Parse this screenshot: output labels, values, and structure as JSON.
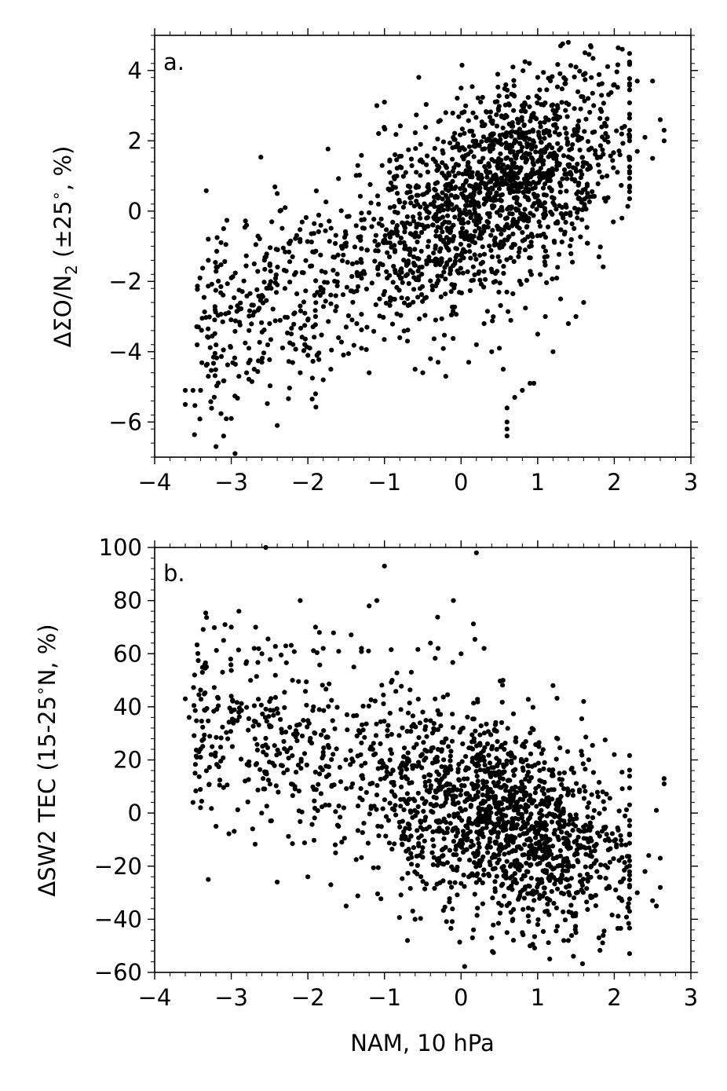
{
  "chart_data": [
    {
      "type": "scatter",
      "panel_label": "a.",
      "ylabel_prefix": "ΔΣO/N",
      "ylabel_sub": "2",
      "ylabel_suffix": " (±25",
      "ylabel_deg": "∘",
      "ylabel_end": ", %)",
      "xlim": [
        -4,
        3
      ],
      "ylim": [
        -7,
        5
      ],
      "xticks": [
        -4,
        -3,
        -2,
        -1,
        0,
        1,
        2,
        3
      ],
      "yticks": [
        -6,
        -4,
        -2,
        0,
        2,
        4
      ],
      "xtick_labels": [
        "−4",
        "−3",
        "−2",
        "−1",
        "0",
        "1",
        "2",
        "3"
      ],
      "ytick_labels": [
        "−6",
        "−4",
        "−2",
        "0",
        "2",
        "4"
      ],
      "marker_color": "#000000",
      "trend": {
        "slope": 1.05,
        "intercept": 0.1,
        "scatter_sd": 1.35
      },
      "points": [
        [
          -3.6,
          -5.5
        ],
        [
          -3.5,
          -5.1
        ],
        [
          -3.3,
          -4.7
        ],
        [
          -3.2,
          -6.7
        ],
        [
          -3.1,
          -6.4
        ],
        [
          -3.0,
          -5.9
        ],
        [
          -2.95,
          -6.9
        ],
        [
          -2.9,
          -4.7
        ],
        [
          -2.8,
          -4.6
        ],
        [
          -2.7,
          -4.5
        ],
        [
          -2.6,
          -4.3
        ],
        [
          -2.5,
          -3.2
        ],
        [
          -2.4,
          -6.1
        ],
        [
          -3.3,
          -1.4
        ],
        [
          -3.3,
          -0.8
        ],
        [
          -3.1,
          -0.5
        ],
        [
          -3.0,
          -1.9
        ],
        [
          -2.9,
          -2.8
        ],
        [
          -2.8,
          -0.4
        ],
        [
          -2.7,
          -1.5
        ],
        [
          -2.6,
          -2.4
        ],
        [
          -2.5,
          -2.1
        ],
        [
          -2.4,
          0.5
        ],
        [
          -2.3,
          -2.2
        ],
        [
          -2.2,
          -1.3
        ],
        [
          -2.1,
          -2.7
        ],
        [
          -2.0,
          -3.1
        ],
        [
          -1.9,
          -3.0
        ],
        [
          -1.8,
          -4.8
        ],
        [
          -1.7,
          -4.5
        ],
        [
          -1.6,
          -3.6
        ],
        [
          -1.5,
          -3.3
        ],
        [
          -1.4,
          -2.3
        ],
        [
          -1.3,
          -3.9
        ],
        [
          -1.2,
          -4.6
        ],
        [
          -1.1,
          3.0
        ],
        [
          -1.0,
          3.1
        ],
        [
          -0.9,
          -2.5
        ],
        [
          -0.8,
          -3.6
        ],
        [
          -0.7,
          -3.7
        ],
        [
          -0.6,
          -4.5
        ],
        [
          -0.5,
          -4.6
        ],
        [
          -0.4,
          -4.2
        ],
        [
          -0.3,
          -4.3
        ],
        [
          -0.2,
          2.8
        ],
        [
          -0.1,
          -0.4
        ],
        [
          0.0,
          3.5
        ],
        [
          0.1,
          -4.3
        ],
        [
          0.2,
          -3.8
        ],
        [
          0.3,
          -3.2
        ],
        [
          0.4,
          -4.0
        ],
        [
          0.5,
          -3.9
        ],
        [
          0.55,
          -4.5
        ],
        [
          0.6,
          -5.6
        ],
        [
          0.6,
          -6.0
        ],
        [
          0.6,
          -6.2
        ],
        [
          0.6,
          -6.4
        ],
        [
          0.7,
          -5.3
        ],
        [
          0.8,
          -5.1
        ],
        [
          0.9,
          -4.9
        ],
        [
          1.0,
          -3.5
        ],
        [
          1.1,
          -3.0
        ],
        [
          1.2,
          -4.0
        ],
        [
          1.3,
          4.7
        ],
        [
          1.4,
          4.8
        ],
        [
          1.5,
          4.1
        ],
        [
          1.7,
          3.8
        ],
        [
          1.8,
          3.6
        ],
        [
          2.0,
          3.6
        ],
        [
          2.1,
          -0.2
        ],
        [
          2.2,
          2.3
        ],
        [
          2.3,
          3.7
        ],
        [
          2.4,
          2.1
        ],
        [
          2.5,
          3.7
        ],
        [
          2.6,
          2.6
        ],
        [
          2.65,
          2.0
        ],
        [
          2.65,
          2.3
        ],
        [
          2.5,
          1.5
        ],
        [
          2.3,
          1.7
        ],
        [
          1.8,
          -1.3
        ],
        [
          1.6,
          -2.6
        ],
        [
          1.5,
          -3.0
        ],
        [
          1.4,
          -3.2
        ],
        [
          1.3,
          -2.5
        ],
        [
          -3.6,
          -5.1
        ],
        [
          -3.4,
          -5.1
        ],
        [
          -2.1,
          -4.6
        ],
        [
          -1.9,
          -5.2
        ],
        [
          -0.2,
          -4.7
        ],
        [
          0.95,
          -4.9
        ]
      ]
    },
    {
      "type": "scatter",
      "panel_label": "b.",
      "ylabel_prefix": "ΔSW2 TEC (15-25",
      "ylabel_deg": "∘",
      "ylabel_end": "N, %)",
      "xlabel": "NAM, 10 hPa",
      "xlim": [
        -4,
        3
      ],
      "ylim": [
        -60,
        100
      ],
      "xticks": [
        -4,
        -3,
        -2,
        -1,
        0,
        1,
        2,
        3
      ],
      "yticks": [
        -60,
        -40,
        -20,
        0,
        20,
        40,
        60,
        80,
        100
      ],
      "xtick_labels": [
        "−4",
        "−3",
        "−2",
        "−1",
        "0",
        "1",
        "2",
        "3"
      ],
      "ytick_labels": [
        "−60",
        "−40",
        "−20",
        "0",
        "20",
        "40",
        "60",
        "80",
        "100"
      ],
      "marker_color": "#000000",
      "trend": {
        "slope": -9.5,
        "intercept": 3.0,
        "scatter_sd": 19.0
      },
      "points": [
        [
          -3.6,
          43
        ],
        [
          -3.55,
          36
        ],
        [
          -3.5,
          4
        ],
        [
          -3.4,
          21
        ],
        [
          -3.3,
          -25
        ],
        [
          -3.2,
          -5
        ],
        [
          -3.1,
          65
        ],
        [
          -3.0,
          70
        ],
        [
          -2.9,
          76
        ],
        [
          -2.8,
          57
        ],
        [
          -2.7,
          62
        ],
        [
          -2.6,
          60
        ],
        [
          -2.55,
          100
        ],
        [
          -2.5,
          42
        ],
        [
          -2.4,
          -26
        ],
        [
          -2.2,
          50
        ],
        [
          -2.1,
          80
        ],
        [
          -1.9,
          70
        ],
        [
          -1.85,
          68
        ],
        [
          -1.8,
          62
        ],
        [
          -1.7,
          -27
        ],
        [
          -1.5,
          -35
        ],
        [
          -1.4,
          55
        ],
        [
          -1.3,
          62
        ],
        [
          -1.2,
          78
        ],
        [
          -1.1,
          80
        ],
        [
          -1.0,
          93
        ],
        [
          -0.9,
          50
        ],
        [
          -0.7,
          -48
        ],
        [
          -0.6,
          -40
        ],
        [
          -0.4,
          64
        ],
        [
          -0.3,
          62
        ],
        [
          -0.1,
          80
        ],
        [
          0.0,
          60
        ],
        [
          0.2,
          98
        ],
        [
          0.3,
          62
        ],
        [
          0.4,
          -47
        ],
        [
          0.6,
          -45
        ],
        [
          0.8,
          -45
        ],
        [
          0.9,
          -50
        ],
        [
          1.0,
          -42
        ],
        [
          1.2,
          48
        ],
        [
          1.4,
          -48
        ],
        [
          1.5,
          -45
        ],
        [
          1.6,
          42
        ],
        [
          1.8,
          -47
        ],
        [
          2.0,
          22
        ],
        [
          2.1,
          -33
        ],
        [
          2.3,
          -30
        ],
        [
          2.4,
          -22
        ],
        [
          2.5,
          -33
        ],
        [
          2.55,
          1
        ],
        [
          2.6,
          -28
        ],
        [
          2.65,
          11
        ],
        [
          2.65,
          13
        ],
        [
          2.6,
          -17
        ],
        [
          2.55,
          -35
        ],
        [
          2.45,
          -16
        ],
        [
          2.2,
          -37
        ],
        [
          -2.9,
          38
        ],
        [
          -3.0,
          44
        ],
        [
          -3.25,
          25
        ],
        [
          -2.35,
          18
        ],
        [
          -2.0,
          -24
        ],
        [
          -1.6,
          -5
        ],
        [
          -0.5,
          38
        ],
        [
          -0.3,
          24
        ],
        [
          1.7,
          -20
        ],
        [
          1.9,
          -8
        ],
        [
          2.15,
          -12
        ]
      ]
    }
  ]
}
